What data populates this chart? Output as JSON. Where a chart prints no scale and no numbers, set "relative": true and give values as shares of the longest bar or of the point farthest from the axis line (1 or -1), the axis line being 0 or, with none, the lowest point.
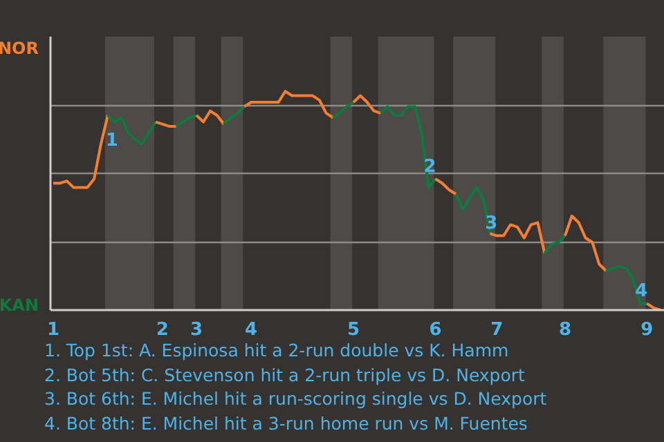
{
  "chart_data": {
    "type": "line",
    "relative": true,
    "categories": [
      "1",
      null,
      null,
      null,
      null,
      null,
      null,
      null,
      null,
      null,
      null,
      null,
      null,
      null,
      null,
      null,
      "2",
      null,
      null,
      null,
      null,
      "3",
      null,
      null,
      null,
      null,
      null,
      null,
      null,
      "4",
      null,
      null,
      null,
      null,
      null,
      null,
      null,
      null,
      null,
      null,
      null,
      null,
      null,
      null,
      "5",
      null,
      null,
      null,
      null,
      null,
      null,
      null,
      null,
      null,
      null,
      null,
      "6",
      null,
      null,
      null,
      null,
      null,
      null,
      null,
      null,
      "7",
      null,
      null,
      null,
      null,
      null,
      null,
      null,
      null,
      null,
      "8",
      null,
      null,
      null,
      null,
      null,
      null,
      null,
      null,
      null,
      null,
      null,
      "9",
      null,
      null
    ],
    "grid": "y",
    "marker": "none",
    "line_style": "solid",
    "series": [
      {
        "name": "NOR",
        "color": "#f47f2e",
        "values": [
          0.58,
          0.58,
          0.59,
          0.56,
          0.56,
          0.56,
          0.6,
          0.76,
          0.89,
          null,
          null,
          null,
          null,
          null,
          null,
          null,
          null,
          null,
          null,
          null,
          null,
          null,
          null,
          null,
          null,
          null,
          null,
          null,
          null,
          null,
          null,
          null,
          null,
          null,
          null,
          null,
          null,
          null,
          null,
          null,
          null,
          null,
          null,
          null,
          null,
          null,
          null,
          null,
          null,
          null,
          null,
          null,
          null,
          null,
          null,
          null,
          null,
          null,
          null,
          null,
          null,
          null,
          null,
          null,
          null,
          null,
          null,
          null,
          null,
          null,
          null,
          null,
          null,
          null,
          null,
          null,
          null,
          null,
          null,
          null,
          null,
          null,
          null,
          null,
          null,
          null,
          null,
          null,
          null,
          null
        ]
      },
      {
        "name": "KAN",
        "color": "#0e7a3b",
        "values": [
          null,
          null,
          null,
          null,
          null,
          null,
          null,
          null,
          0.89,
          0.86,
          0.88,
          0.81,
          0.78,
          0.76,
          0.81,
          0.86,
          null,
          null,
          null,
          null,
          null,
          null,
          null,
          null,
          null,
          null,
          null,
          null,
          null,
          null,
          null,
          null,
          null,
          null,
          null,
          null,
          null,
          null,
          null,
          null,
          null,
          null,
          null,
          null,
          null,
          null,
          null,
          null,
          null,
          null,
          null,
          null,
          null,
          null,
          null,
          null,
          null,
          null,
          null,
          null,
          null,
          null,
          null,
          null,
          null,
          null,
          null,
          null,
          null,
          null,
          null,
          null,
          null,
          null,
          null,
          null,
          null,
          null,
          null,
          null,
          null,
          null,
          null,
          null,
          null,
          null,
          null,
          null,
          null,
          null
        ]
      },
      {
        "color": "#f47f2f",
        "values": [
          null,
          null,
          null,
          null,
          null,
          null,
          null,
          null,
          null,
          null,
          null,
          null,
          null,
          null,
          null,
          0.86,
          0.85,
          0.84,
          0.84,
          null,
          null,
          null,
          null,
          null,
          null,
          null,
          null,
          null,
          null,
          null,
          null,
          null,
          null,
          null,
          null,
          null,
          null,
          null,
          null,
          null,
          null,
          null,
          null,
          null,
          null,
          null,
          null,
          null,
          null,
          null,
          null,
          null,
          null,
          null,
          null,
          null,
          null,
          null,
          null,
          null,
          null,
          null,
          null,
          null,
          null,
          null,
          null,
          null,
          null,
          null,
          null,
          null,
          null,
          null,
          null,
          null,
          null,
          null,
          null,
          null,
          null,
          null,
          null,
          null,
          null,
          null,
          null,
          null,
          null,
          null
        ]
      },
      {
        "color": "#0e7a3c",
        "values": [
          null,
          null,
          null,
          null,
          null,
          null,
          null,
          null,
          null,
          null,
          null,
          null,
          null,
          null,
          null,
          null,
          null,
          null,
          0.84,
          0.86,
          0.88,
          0.89,
          null,
          null,
          null,
          null,
          null,
          null,
          null,
          null,
          null,
          null,
          null,
          null,
          null,
          null,
          null,
          null,
          null,
          null,
          null,
          null,
          null,
          null,
          null,
          null,
          null,
          null,
          null,
          null,
          null,
          null,
          null,
          null,
          null,
          null,
          null,
          null,
          null,
          null,
          null,
          null,
          null,
          null,
          null,
          null,
          null,
          null,
          null,
          null,
          null,
          null,
          null,
          null,
          null,
          null,
          null,
          null,
          null,
          null,
          null,
          null,
          null,
          null,
          null,
          null,
          null,
          null,
          null,
          null
        ]
      },
      {
        "color": "#f47f30",
        "values": [
          null,
          null,
          null,
          null,
          null,
          null,
          null,
          null,
          null,
          null,
          null,
          null,
          null,
          null,
          null,
          null,
          null,
          null,
          null,
          null,
          null,
          0.89,
          0.86,
          0.91,
          0.89,
          0.85,
          null,
          null,
          null,
          null,
          null,
          null,
          null,
          null,
          null,
          null,
          null,
          null,
          null,
          null,
          null,
          null,
          null,
          null,
          null,
          null,
          null,
          null,
          null,
          null,
          null,
          null,
          null,
          null,
          null,
          null,
          null,
          null,
          null,
          null,
          null,
          null,
          null,
          null,
          null,
          null,
          null,
          null,
          null,
          null,
          null,
          null,
          null,
          null,
          null,
          null,
          null,
          null,
          null,
          null,
          null,
          null,
          null,
          null,
          null,
          null,
          null,
          null,
          null,
          null
        ]
      },
      {
        "color": "#0e7a3d",
        "values": [
          null,
          null,
          null,
          null,
          null,
          null,
          null,
          null,
          null,
          null,
          null,
          null,
          null,
          null,
          null,
          null,
          null,
          null,
          null,
          null,
          null,
          null,
          null,
          null,
          null,
          0.85,
          0.88,
          0.9,
          0.93,
          null,
          null,
          null,
          null,
          null,
          null,
          null,
          null,
          null,
          null,
          null,
          null,
          null,
          null,
          null,
          null,
          null,
          null,
          null,
          null,
          null,
          null,
          null,
          null,
          null,
          null,
          null,
          null,
          null,
          null,
          null,
          null,
          null,
          null,
          null,
          null,
          null,
          null,
          null,
          null,
          null,
          null,
          null,
          null,
          null,
          null,
          null,
          null,
          null,
          null,
          null,
          null,
          null,
          null,
          null,
          null,
          null,
          null,
          null,
          null,
          null
        ]
      },
      {
        "color": "#f47f31",
        "values": [
          null,
          null,
          null,
          null,
          null,
          null,
          null,
          null,
          null,
          null,
          null,
          null,
          null,
          null,
          null,
          null,
          null,
          null,
          null,
          null,
          null,
          null,
          null,
          null,
          null,
          null,
          null,
          null,
          0.93,
          0.95,
          0.95,
          0.95,
          0.95,
          0.95,
          1,
          0.98,
          0.98,
          0.98,
          0.98,
          0.96,
          0.9,
          0.88,
          null,
          null,
          null,
          null,
          null,
          null,
          null,
          null,
          null,
          null,
          null,
          null,
          null,
          null,
          null,
          null,
          null,
          null,
          null,
          null,
          null,
          null,
          null,
          null,
          null,
          null,
          null,
          null,
          null,
          null,
          null,
          null,
          null,
          null,
          null,
          null,
          null,
          null,
          null,
          null,
          null,
          null,
          null,
          null,
          null,
          null,
          null,
          null
        ]
      },
      {
        "color": "#0e7a3e",
        "values": [
          null,
          null,
          null,
          null,
          null,
          null,
          null,
          null,
          null,
          null,
          null,
          null,
          null,
          null,
          null,
          null,
          null,
          null,
          null,
          null,
          null,
          null,
          null,
          null,
          null,
          null,
          null,
          null,
          null,
          null,
          null,
          null,
          null,
          null,
          null,
          null,
          null,
          null,
          null,
          null,
          null,
          0.88,
          0.9,
          0.93,
          0.95,
          null,
          null,
          null,
          null,
          null,
          null,
          null,
          null,
          null,
          null,
          null,
          null,
          null,
          null,
          null,
          null,
          null,
          null,
          null,
          null,
          null,
          null,
          null,
          null,
          null,
          null,
          null,
          null,
          null,
          null,
          null,
          null,
          null,
          null,
          null,
          null,
          null,
          null,
          null,
          null,
          null,
          null,
          null,
          null,
          null
        ]
      },
      {
        "color": "#f47f32",
        "values": [
          null,
          null,
          null,
          null,
          null,
          null,
          null,
          null,
          null,
          null,
          null,
          null,
          null,
          null,
          null,
          null,
          null,
          null,
          null,
          null,
          null,
          null,
          null,
          null,
          null,
          null,
          null,
          null,
          null,
          null,
          null,
          null,
          null,
          null,
          null,
          null,
          null,
          null,
          null,
          null,
          null,
          null,
          null,
          null,
          0.95,
          0.98,
          0.95,
          0.91,
          0.9,
          null,
          null,
          null,
          null,
          null,
          null,
          null,
          null,
          null,
          null,
          null,
          null,
          null,
          null,
          null,
          null,
          null,
          null,
          null,
          null,
          null,
          null,
          null,
          null,
          null,
          null,
          null,
          null,
          null,
          null,
          null,
          null,
          null,
          null,
          null,
          null,
          null,
          null,
          null,
          null,
          null
        ]
      },
      {
        "color": "#0e7a3f",
        "values": [
          null,
          null,
          null,
          null,
          null,
          null,
          null,
          null,
          null,
          null,
          null,
          null,
          null,
          null,
          null,
          null,
          null,
          null,
          null,
          null,
          null,
          null,
          null,
          null,
          null,
          null,
          null,
          null,
          null,
          null,
          null,
          null,
          null,
          null,
          null,
          null,
          null,
          null,
          null,
          null,
          null,
          null,
          null,
          null,
          null,
          null,
          null,
          null,
          0.9,
          0.93,
          0.89,
          0.89,
          0.93,
          0.93,
          0.81,
          0.56,
          0.6,
          null,
          null,
          null,
          null,
          null,
          null,
          null,
          null,
          null,
          null,
          null,
          null,
          null,
          null,
          null,
          null,
          null,
          null,
          null,
          null,
          null,
          null,
          null,
          null,
          null,
          null,
          null,
          null,
          null,
          null,
          null,
          null,
          null
        ]
      },
      {
        "color": "#f47f33",
        "values": [
          null,
          null,
          null,
          null,
          null,
          null,
          null,
          null,
          null,
          null,
          null,
          null,
          null,
          null,
          null,
          null,
          null,
          null,
          null,
          null,
          null,
          null,
          null,
          null,
          null,
          null,
          null,
          null,
          null,
          null,
          null,
          null,
          null,
          null,
          null,
          null,
          null,
          null,
          null,
          null,
          null,
          null,
          null,
          null,
          null,
          null,
          null,
          null,
          null,
          null,
          null,
          null,
          null,
          null,
          null,
          null,
          0.6,
          0.58,
          0.55,
          0.53,
          null,
          null,
          null,
          null,
          null,
          null,
          null,
          null,
          null,
          null,
          null,
          null,
          null,
          null,
          null,
          null,
          null,
          null,
          null,
          null,
          null,
          null,
          null,
          null,
          null,
          null,
          null,
          null,
          null,
          null
        ]
      },
      {
        "color": "#0e7a40",
        "values": [
          null,
          null,
          null,
          null,
          null,
          null,
          null,
          null,
          null,
          null,
          null,
          null,
          null,
          null,
          null,
          null,
          null,
          null,
          null,
          null,
          null,
          null,
          null,
          null,
          null,
          null,
          null,
          null,
          null,
          null,
          null,
          null,
          null,
          null,
          null,
          null,
          null,
          null,
          null,
          null,
          null,
          null,
          null,
          null,
          null,
          null,
          null,
          null,
          null,
          null,
          null,
          null,
          null,
          null,
          null,
          null,
          null,
          null,
          null,
          0.53,
          0.46,
          0.51,
          0.56,
          0.51,
          0.35,
          null,
          null,
          null,
          null,
          null,
          null,
          null,
          null,
          null,
          null,
          null,
          null,
          null,
          null,
          null,
          null,
          null,
          null,
          null,
          null,
          null,
          null,
          null,
          null,
          null
        ]
      },
      {
        "color": "#f47f34",
        "values": [
          null,
          null,
          null,
          null,
          null,
          null,
          null,
          null,
          null,
          null,
          null,
          null,
          null,
          null,
          null,
          null,
          null,
          null,
          null,
          null,
          null,
          null,
          null,
          null,
          null,
          null,
          null,
          null,
          null,
          null,
          null,
          null,
          null,
          null,
          null,
          null,
          null,
          null,
          null,
          null,
          null,
          null,
          null,
          null,
          null,
          null,
          null,
          null,
          null,
          null,
          null,
          null,
          null,
          null,
          null,
          null,
          null,
          null,
          null,
          null,
          null,
          null,
          null,
          null,
          0.35,
          0.34,
          0.34,
          0.39,
          0.38,
          0.33,
          0.39,
          0.4,
          0.26,
          null,
          null,
          null,
          null,
          null,
          null,
          null,
          null,
          null,
          null,
          null,
          null,
          null,
          null,
          null,
          null,
          null
        ]
      },
      {
        "color": "#0e7a41",
        "values": [
          null,
          null,
          null,
          null,
          null,
          null,
          null,
          null,
          null,
          null,
          null,
          null,
          null,
          null,
          null,
          null,
          null,
          null,
          null,
          null,
          null,
          null,
          null,
          null,
          null,
          null,
          null,
          null,
          null,
          null,
          null,
          null,
          null,
          null,
          null,
          null,
          null,
          null,
          null,
          null,
          null,
          null,
          null,
          null,
          null,
          null,
          null,
          null,
          null,
          null,
          null,
          null,
          null,
          null,
          null,
          null,
          null,
          null,
          null,
          null,
          null,
          null,
          null,
          null,
          null,
          null,
          null,
          null,
          null,
          null,
          null,
          null,
          0.26,
          0.3,
          0.31,
          0.34,
          null,
          null,
          null,
          null,
          null,
          null,
          null,
          null,
          null,
          null,
          null,
          null,
          null,
          null
        ]
      },
      {
        "color": "#f47f35",
        "values": [
          null,
          null,
          null,
          null,
          null,
          null,
          null,
          null,
          null,
          null,
          null,
          null,
          null,
          null,
          null,
          null,
          null,
          null,
          null,
          null,
          null,
          null,
          null,
          null,
          null,
          null,
          null,
          null,
          null,
          null,
          null,
          null,
          null,
          null,
          null,
          null,
          null,
          null,
          null,
          null,
          null,
          null,
          null,
          null,
          null,
          null,
          null,
          null,
          null,
          null,
          null,
          null,
          null,
          null,
          null,
          null,
          null,
          null,
          null,
          null,
          null,
          null,
          null,
          null,
          null,
          null,
          null,
          null,
          null,
          null,
          null,
          null,
          null,
          null,
          null,
          0.34,
          0.43,
          0.4,
          0.33,
          0.31,
          0.21,
          0.18,
          null,
          null,
          null,
          null,
          null,
          null,
          null,
          null
        ]
      },
      {
        "color": "#0e7a42",
        "values": [
          null,
          null,
          null,
          null,
          null,
          null,
          null,
          null,
          null,
          null,
          null,
          null,
          null,
          null,
          null,
          null,
          null,
          null,
          null,
          null,
          null,
          null,
          null,
          null,
          null,
          null,
          null,
          null,
          null,
          null,
          null,
          null,
          null,
          null,
          null,
          null,
          null,
          null,
          null,
          null,
          null,
          null,
          null,
          null,
          null,
          null,
          null,
          null,
          null,
          null,
          null,
          null,
          null,
          null,
          null,
          null,
          null,
          null,
          null,
          null,
          null,
          null,
          null,
          null,
          null,
          null,
          null,
          null,
          null,
          null,
          null,
          null,
          null,
          null,
          null,
          null,
          null,
          null,
          null,
          null,
          null,
          0.18,
          0.19,
          0.2,
          0.19,
          0.14,
          0.03,
          0.03,
          null,
          null
        ]
      },
      {
        "color": "#f47f36",
        "values": [
          null,
          null,
          null,
          null,
          null,
          null,
          null,
          null,
          null,
          null,
          null,
          null,
          null,
          null,
          null,
          null,
          null,
          null,
          null,
          null,
          null,
          null,
          null,
          null,
          null,
          null,
          null,
          null,
          null,
          null,
          null,
          null,
          null,
          null,
          null,
          null,
          null,
          null,
          null,
          null,
          null,
          null,
          null,
          null,
          null,
          null,
          null,
          null,
          null,
          null,
          null,
          null,
          null,
          null,
          null,
          null,
          null,
          null,
          null,
          null,
          null,
          null,
          null,
          null,
          null,
          null,
          null,
          null,
          null,
          null,
          null,
          null,
          null,
          null,
          null,
          null,
          null,
          null,
          null,
          null,
          null,
          null,
          null,
          null,
          null,
          null,
          null,
          0.03,
          0.01,
          0
        ]
      }
    ],
    "annotations": [
      {
        "text": "1",
        "y": 0.89
      },
      {
        "text": "2",
        "x": "6",
        "y": 0.6
      },
      {
        "text": "3",
        "x": "7",
        "y": 0.34
      },
      {
        "text": "4",
        "x": "9",
        "y": 0.03
      },
      "1. Top 1st: A. Espinosa hit a 2-run double vs K. Hamm",
      "2. Bot 5th: C. Stevenson hit a 2-run triple vs D. Nexport",
      "3. Bot 6th: E. Michel hit a run-scoring single vs D. Nexport",
      "4. Bot 8th: E. Michel hit a 3-run home run vs M. Fuentes"
    ]
  }
}
